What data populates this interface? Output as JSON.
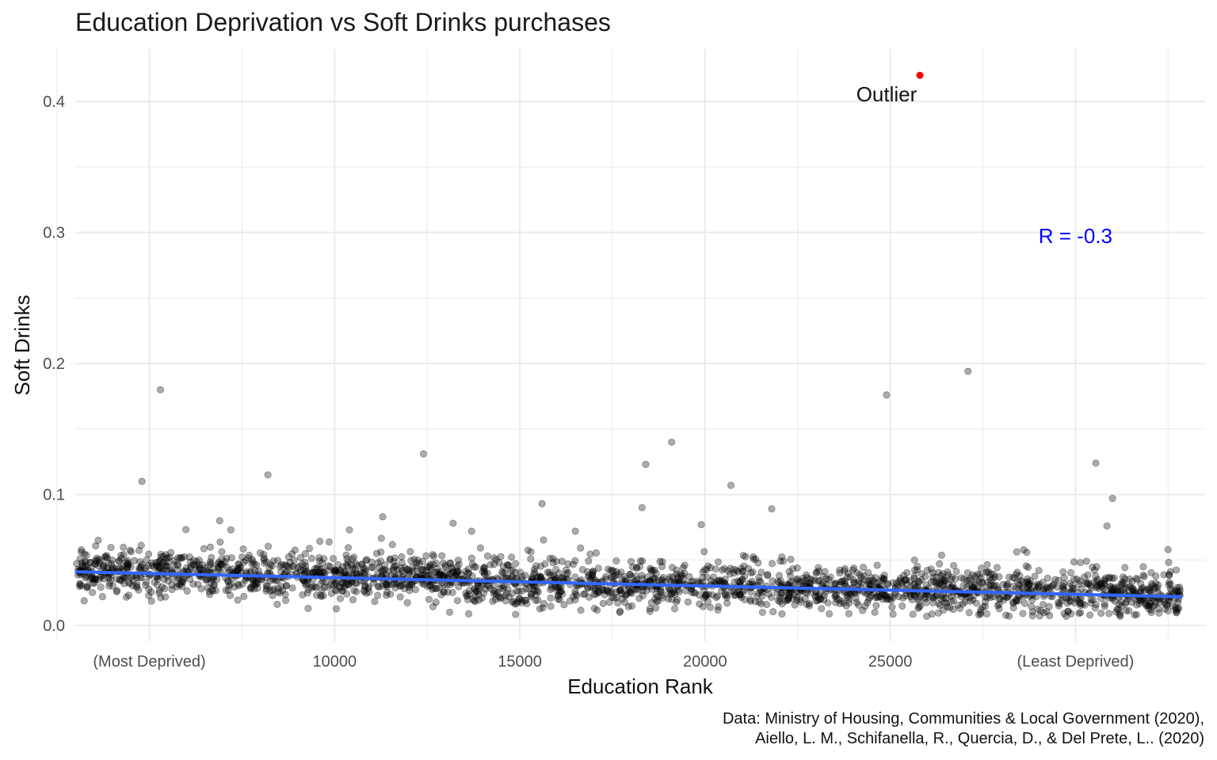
{
  "chart_data": {
    "type": "scatter",
    "title": "Education Deprivation vs Soft Drinks purchases",
    "xlabel": "Education Rank",
    "ylabel": "Soft Drinks",
    "xlim": [
      3000,
      33500
    ],
    "ylim": [
      -0.012,
      0.44
    ],
    "x_ticks": [
      {
        "value": 5000,
        "label": "(Most Deprived)"
      },
      {
        "value": 10000,
        "label": "10000"
      },
      {
        "value": 15000,
        "label": "15000"
      },
      {
        "value": 20000,
        "label": "20000"
      },
      {
        "value": 25000,
        "label": "25000"
      },
      {
        "value": 30000,
        "label": "(Least Deprived)"
      }
    ],
    "x_minor_ticks": [
      2500,
      7500,
      12500,
      17500,
      22500,
      27500,
      32500
    ],
    "y_ticks": [
      {
        "value": 0.0,
        "label": "0.0"
      },
      {
        "value": 0.1,
        "label": "0.1"
      },
      {
        "value": 0.2,
        "label": "0.2"
      },
      {
        "value": 0.3,
        "label": "0.3"
      },
      {
        "value": 0.4,
        "label": "0.4"
      }
    ],
    "y_minor_ticks": [
      0.05,
      0.15,
      0.25,
      0.35
    ],
    "grid": true,
    "bulk": {
      "x_range": [
        3032,
        32844
      ],
      "trend_y_start": 0.041,
      "trend_y_end": 0.022,
      "noise_sd": 0.0085,
      "count": 2400,
      "color": "#000000",
      "opacity": 0.33
    },
    "notable_points": [
      {
        "x": 5300,
        "y": 0.18
      },
      {
        "x": 4800,
        "y": 0.11
      },
      {
        "x": 8200,
        "y": 0.115
      },
      {
        "x": 12400,
        "y": 0.131
      },
      {
        "x": 19100,
        "y": 0.14
      },
      {
        "x": 18400,
        "y": 0.123
      },
      {
        "x": 20700,
        "y": 0.107
      },
      {
        "x": 24900,
        "y": 0.176
      },
      {
        "x": 27100,
        "y": 0.194
      },
      {
        "x": 30550,
        "y": 0.124
      },
      {
        "x": 31000,
        "y": 0.097
      },
      {
        "x": 30850,
        "y": 0.076
      },
      {
        "x": 15600,
        "y": 0.093
      },
      {
        "x": 18300,
        "y": 0.09
      },
      {
        "x": 21800,
        "y": 0.089
      },
      {
        "x": 11300,
        "y": 0.083
      },
      {
        "x": 13200,
        "y": 0.078
      },
      {
        "x": 19900,
        "y": 0.077
      },
      {
        "x": 6900,
        "y": 0.08
      },
      {
        "x": 10400,
        "y": 0.073
      },
      {
        "x": 13700,
        "y": 0.072
      },
      {
        "x": 7200,
        "y": 0.073
      },
      {
        "x": 16500,
        "y": 0.072
      },
      {
        "x": 32500,
        "y": 0.058
      }
    ],
    "outlier": {
      "x": 25800,
      "y": 0.42,
      "color": "#ff0000",
      "label": "Outlier"
    },
    "trend_line": {
      "x": [
        3032,
        32844
      ],
      "y": [
        0.041,
        0.022
      ],
      "color": "#3366ff"
    },
    "annotation": {
      "text": "R = -0.3",
      "x": 30000,
      "y": 0.298,
      "color": "#0000ff"
    },
    "colors": {
      "point": "#000000",
      "trend": "#3366ff",
      "outlier": "#ff0000",
      "annotation": "#0000ff",
      "grid": "#ebebeb",
      "tick_text": "#4d4d4d"
    }
  },
  "caption": {
    "line1": "Data: Ministry of Housing, Communities & Local Government (2020),",
    "line2": "Aiello, L. M., Schifanella, R., Quercia, D., & Del Prete, L.. (2020)"
  }
}
